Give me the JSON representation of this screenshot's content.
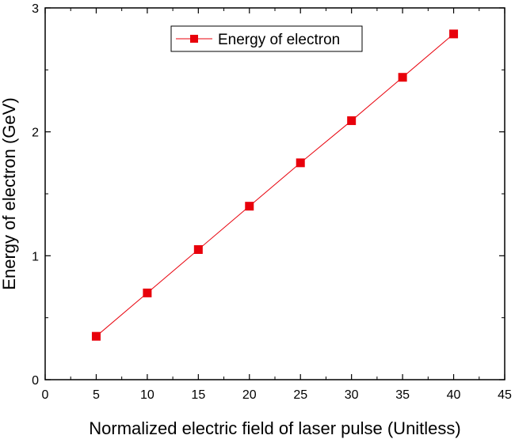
{
  "colors": {
    "series": "#e8000b",
    "axis": "#000000",
    "background": "#ffffff"
  },
  "chart_data": {
    "type": "line",
    "xlabel": "Normalized electric field of laser pulse (Unitless)",
    "ylabel": "Energy of electron (GeV)",
    "xlim": [
      0,
      45
    ],
    "ylim": [
      0,
      3
    ],
    "xticks": [
      0,
      5,
      10,
      15,
      20,
      25,
      30,
      35,
      40,
      45
    ],
    "yticks": [
      0,
      1,
      2,
      3
    ],
    "grid": false,
    "legend_position": "top-center",
    "marker": "square",
    "series": [
      {
        "name": "Energy of electron",
        "x": [
          5,
          10,
          15,
          20,
          25,
          30,
          35,
          40
        ],
        "y": [
          0.35,
          0.7,
          1.05,
          1.4,
          1.75,
          2.09,
          2.44,
          2.79
        ]
      }
    ]
  }
}
